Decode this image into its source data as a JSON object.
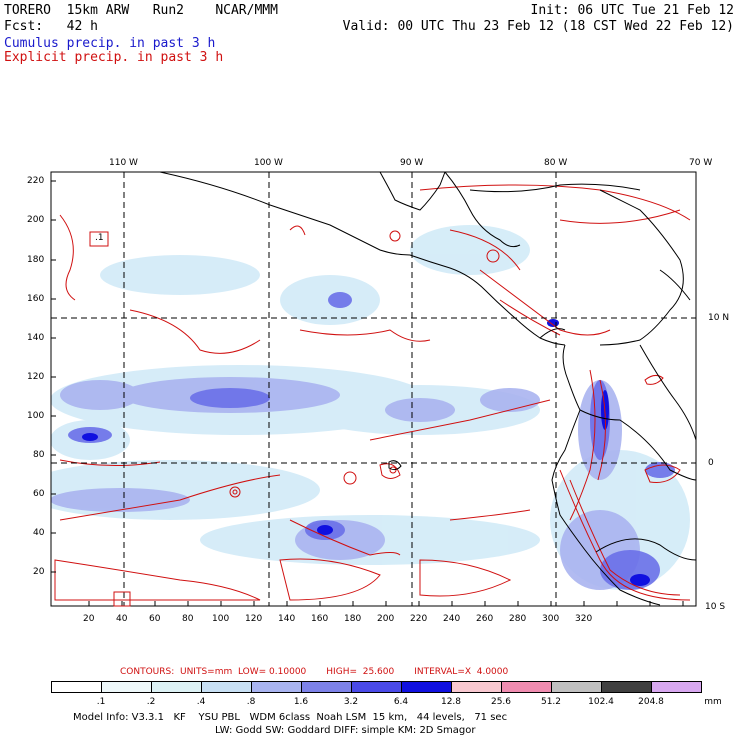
{
  "header": {
    "line1_left": "TORERO  15km ARW   Run2    NCAR/MMM",
    "line1_right": "Init: 06 UTC Tue 21 Feb 12",
    "line2_left": "Fcst:   42 h",
    "line2_right": "Valid: 00 UTC Thu 23 Feb 12 (18 CST Wed 22 Feb 12)",
    "legend_cumulus": "Cumulus precip. in past 3 h",
    "legend_explicit": "Explicit precip. in past 3 h"
  },
  "map": {
    "longitude_labels": [
      "110 W",
      "100 W",
      "90 W",
      "80 W",
      "70 W"
    ],
    "latitude_labels": [
      "10 N",
      "0",
      "10 S"
    ],
    "y_ticks": [
      "220",
      "200",
      "180",
      "160",
      "140",
      "120",
      "100",
      "80",
      "60",
      "40",
      "20"
    ],
    "x_ticks": [
      "20",
      "40",
      "60",
      "80",
      "100",
      "120",
      "140",
      "160",
      "180",
      "200",
      "220",
      "240",
      "260",
      "280",
      "300",
      "320"
    ],
    "box_label": ".1"
  },
  "contours": {
    "text": "CONTOURS:  UNITS=mm  LOW= 0.10000       HIGH=  25.600       INTERVAL=X  4.0000"
  },
  "colorbar": {
    "labels": [
      ".1",
      ".2",
      ".4",
      ".8",
      "1.6",
      "3.2",
      "6.4",
      "12.8",
      "25.6",
      "51.2",
      "102.4",
      "204.8"
    ],
    "unit": "mm",
    "colors": [
      "#ffffff",
      "#ffffff",
      "#eef8fa",
      "#ddf2f5",
      "#c8e0f4",
      "#a9b4f0",
      "#7d82e8",
      "#4a4ae8",
      "#1010e0",
      "#f8c8d0",
      "#f08cb0",
      "#c0c0c0",
      "#404040",
      "#d8a8f0"
    ]
  },
  "footer": {
    "line1": "Model Info: V3.3.1   KF    YSU PBL   WDM 6class  Noah LSM  15 km,   44 levels,   71 sec",
    "line2": "LW: Godd SW: Goddard DIFF: simple KM: 2D Smagor"
  }
}
